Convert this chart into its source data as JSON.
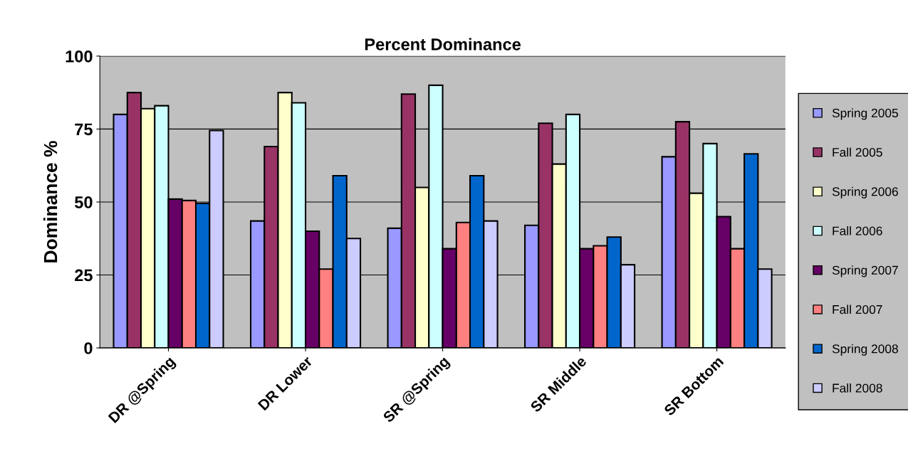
{
  "chart_data": {
    "type": "bar",
    "title": "Percent Dominance",
    "ylabel": "Dominance %",
    "categories": [
      "DR @Spring",
      "DR Lower",
      "SR @Spring",
      "SR Middle",
      "SR Bottom"
    ],
    "series": [
      {
        "name": "Spring 2005",
        "color": "#9999ff",
        "values": [
          80,
          43.5,
          41,
          42,
          65.5
        ]
      },
      {
        "name": "Fall 2005",
        "color": "#993366",
        "values": [
          87.5,
          69,
          87,
          77,
          77.5
        ]
      },
      {
        "name": "Spring 2006",
        "color": "#ffffcc",
        "values": [
          82,
          87.5,
          55,
          63,
          53
        ]
      },
      {
        "name": "Fall 2006",
        "color": "#ccffff",
        "values": [
          83,
          84,
          90,
          80,
          70
        ]
      },
      {
        "name": "Spring 2007",
        "color": "#660066",
        "values": [
          51,
          40,
          34,
          34,
          45
        ]
      },
      {
        "name": "Fall 2007",
        "color": "#ff8080",
        "values": [
          50.5,
          27,
          43,
          35,
          34
        ]
      },
      {
        "name": "Spring 2008",
        "color": "#0066cc",
        "values": [
          49.5,
          59,
          59,
          38,
          66.5
        ]
      },
      {
        "name": "Fall 2008",
        "color": "#ccccff",
        "values": [
          74.5,
          37.5,
          43.5,
          28.5,
          27
        ]
      }
    ],
    "ylim": [
      0,
      100
    ],
    "yticks": [
      0,
      25,
      50,
      75,
      100
    ],
    "grid": "y",
    "legend": "right"
  }
}
